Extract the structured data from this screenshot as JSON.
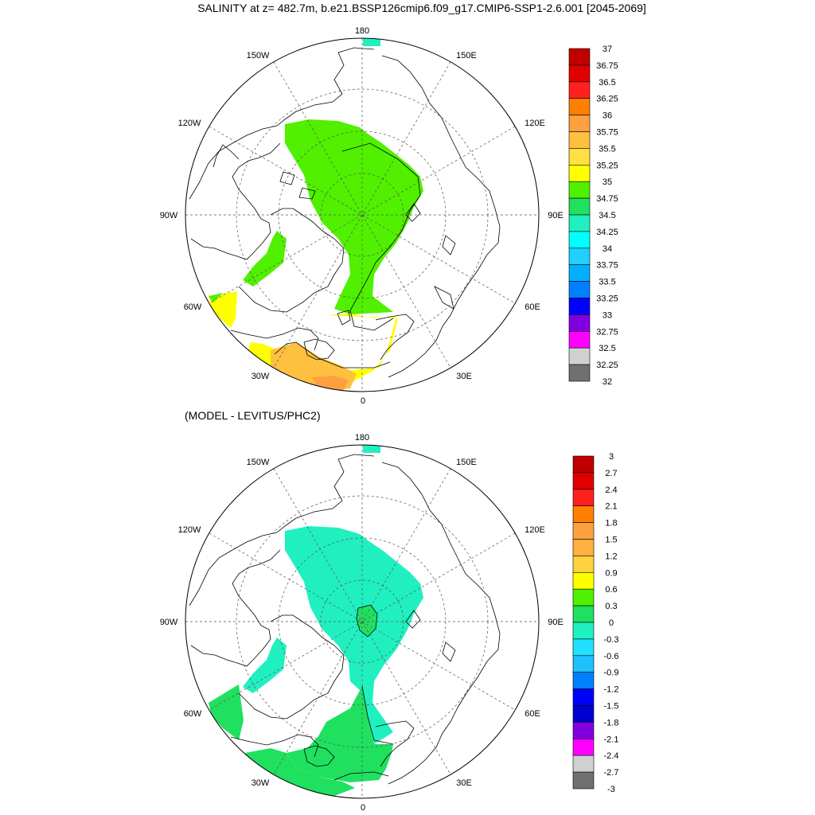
{
  "title": "SALINITY at z= 482.7m, b.e21.BSSP126cmip6.f09_g17.CMIP6-SSP1-2.6.001 [2045-2069]",
  "diff_title": "(MODEL - LEVITUS/PHC2)",
  "longitude_labels": {
    "top": "180",
    "upper_left": "150W",
    "upper_right": "150E",
    "mid_upper_left": "120W",
    "mid_upper_right": "120E",
    "left": "90W",
    "right": "90E",
    "lower_left": "60W",
    "lower_right": "60E",
    "bottom_left": "30W",
    "bottom_right": "30E",
    "bottom": "0"
  },
  "colorbar_top": {
    "labels": [
      "37",
      "36.75",
      "36.5",
      "36.25",
      "36",
      "35.75",
      "35.5",
      "35.25",
      "35",
      "34.75",
      "34.5",
      "34.25",
      "34",
      "33.75",
      "33.5",
      "33.25",
      "33",
      "32.75",
      "32.5",
      "32.25",
      "32"
    ],
    "colors": [
      "#c00000",
      "#e00000",
      "#ff2020",
      "#ff8000",
      "#ffa040",
      "#ffc040",
      "#ffe040",
      "#ffff00",
      "#50f000",
      "#20e060",
      "#20f0c0",
      "#00ffff",
      "#20d0ff",
      "#00b0ff",
      "#0080ff",
      "#0000ff",
      "#8000e0",
      "#ff00ff",
      "#d0d0d0",
      "#707070"
    ]
  },
  "colorbar_bottom": {
    "labels": [
      "3",
      "2.7",
      "2.4",
      "2.1",
      "1.8",
      "1.5",
      "1.2",
      "0.9",
      "0.6",
      "0.3",
      "0",
      "-0.3",
      "-0.6",
      "-0.9",
      "-1.2",
      "-1.5",
      "-1.8",
      "-2.1",
      "-2.4",
      "-2.7",
      "-3"
    ],
    "colors": [
      "#c00000",
      "#e00000",
      "#ff2020",
      "#ff8000",
      "#ffa040",
      "#ffb040",
      "#ffd040",
      "#ffff00",
      "#50f000",
      "#20e060",
      "#20f0c0",
      "#20e0ff",
      "#20c0ff",
      "#0080ff",
      "#0000ff",
      "#0000d0",
      "#8000e0",
      "#ff00ff",
      "#d0d0d0",
      "#707070"
    ]
  },
  "colors": {
    "top_field": "#50f000",
    "top_south": "#ffff00",
    "top_orange": "#ffc040",
    "top_deep_orange": "#ffa040",
    "bottom_field": "#20f0c0",
    "bottom_green": "#20e060",
    "north_patch": "#20f0c0",
    "land_line": "#000000"
  }
}
